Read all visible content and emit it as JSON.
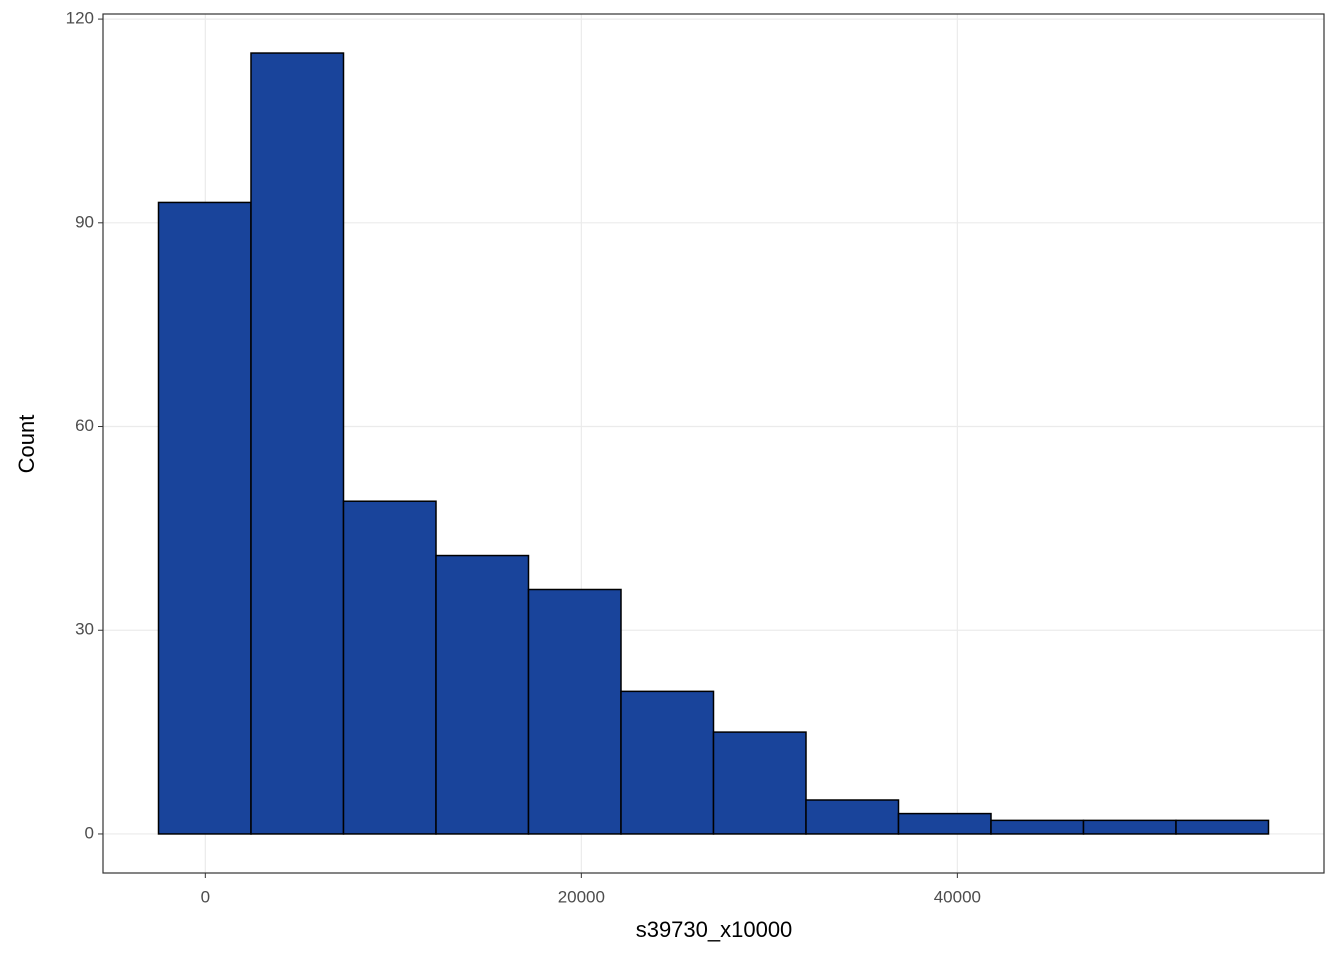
{
  "chart_data": {
    "type": "histogram",
    "x_label": "s39730_x10000",
    "y_label": "Count",
    "bins": [
      -2490,
      2430,
      7350,
      12270,
      17190,
      22110,
      27030,
      31950,
      36870,
      41790,
      46710,
      51630,
      56550
    ],
    "values": [
      93,
      115,
      49,
      41,
      36,
      21,
      15,
      5,
      3,
      2,
      2,
      2
    ],
    "color": "#19449b",
    "xlim": [
      -5442,
      59502
    ],
    "ylim": [
      -5.75,
      120.75
    ],
    "xticks": [
      0,
      20000,
      40000
    ],
    "yticks": [
      0,
      30,
      60,
      90,
      120
    ],
    "grid": true
  }
}
